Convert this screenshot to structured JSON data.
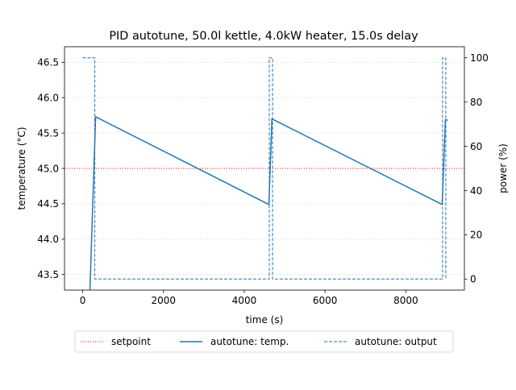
{
  "chart_data": {
    "type": "line",
    "title": "PID autotune, 50.0l kettle, 4.0kW heater, 15.0s delay",
    "xlabel": "time (s)",
    "ylabel": "temperature (°C)",
    "y2label": "power (%)",
    "xlim": [
      -450,
      9450
    ],
    "ylim": [
      43.28,
      46.72
    ],
    "y2lim": [
      -5,
      105
    ],
    "xticks": [
      0,
      2000,
      4000,
      6000,
      8000
    ],
    "xtick_labels": [
      "0",
      "2000",
      "4000",
      "6000",
      "8000"
    ],
    "yticks": [
      43.5,
      44.0,
      44.5,
      45.0,
      45.5,
      46.0,
      46.5
    ],
    "ytick_labels": [
      "43.5",
      "44.0",
      "44.5",
      "45.0",
      "45.5",
      "46.0",
      "46.5"
    ],
    "y2ticks": [
      0,
      20,
      40,
      60,
      80,
      100
    ],
    "y2tick_labels": [
      "0",
      "20",
      "40",
      "60",
      "80",
      "100"
    ],
    "grid": "horizontal dotted",
    "legend_position": "below",
    "series": [
      {
        "name": "setpoint",
        "axis": "left",
        "style": "dotted",
        "color": "#ff0000",
        "x": [
          -450,
          9450
        ],
        "y": [
          45.0,
          45.0
        ]
      },
      {
        "name": "autotune: temp.",
        "axis": "left",
        "style": "solid",
        "color": "#1f77b4",
        "x": [
          180,
          320,
          4610,
          4685,
          8900,
          8980,
          9040
        ],
        "y": [
          43.28,
          45.73,
          44.49,
          45.7,
          44.49,
          45.69,
          45.68
        ]
      },
      {
        "name": "autotune: output",
        "axis": "right",
        "style": "dashed",
        "color": "#1f77b4",
        "x": [
          0,
          300,
          300,
          4620,
          4620,
          4700,
          4700,
          8910,
          8910,
          8990,
          8990,
          9000
        ],
        "y": [
          100,
          100,
          0,
          0,
          100,
          100,
          0,
          0,
          100,
          100,
          0,
          0
        ]
      }
    ]
  }
}
